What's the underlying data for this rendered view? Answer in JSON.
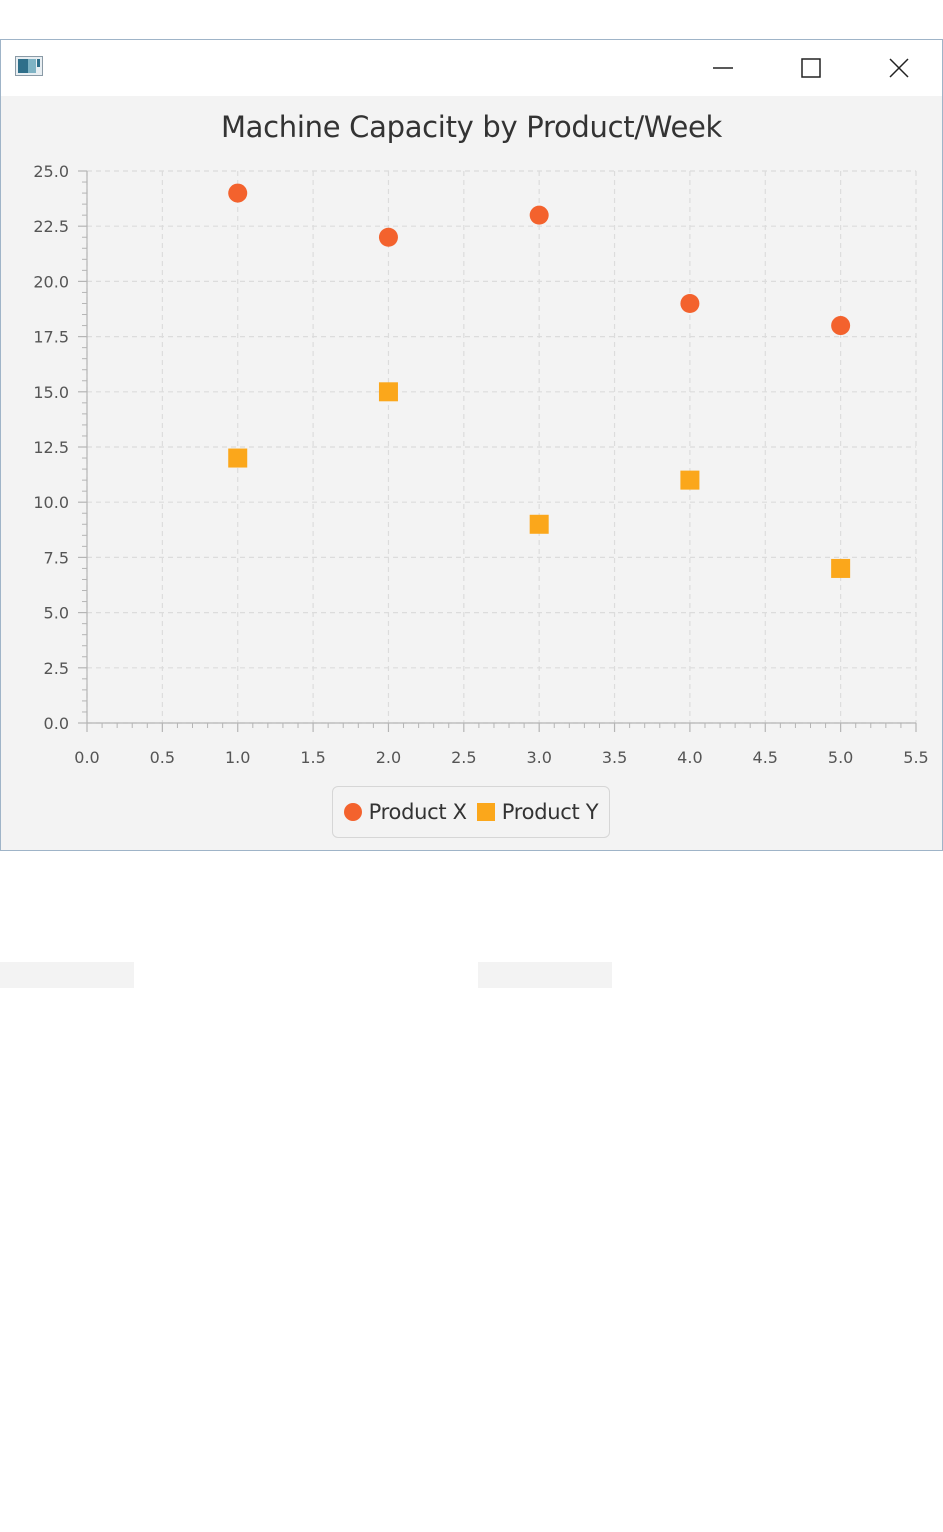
{
  "window": {
    "icon": "java-app-icon",
    "controls": [
      "minimize-icon",
      "maximize-icon",
      "close-icon"
    ]
  },
  "chart_data": {
    "type": "scatter",
    "title": "Machine Capacity by Product/Week",
    "xlabel": "",
    "ylabel": "",
    "xlim": [
      0.0,
      5.5
    ],
    "ylim": [
      0.0,
      25.0
    ],
    "x_ticks": [
      "0.0",
      "0.5",
      "1.0",
      "1.5",
      "2.0",
      "2.5",
      "3.0",
      "3.5",
      "4.0",
      "4.5",
      "5.0",
      "5.5"
    ],
    "y_ticks": [
      "0.0",
      "2.5",
      "5.0",
      "7.5",
      "10.0",
      "12.5",
      "15.0",
      "17.5",
      "20.0",
      "22.5",
      "25.0"
    ],
    "grid": true,
    "legend_position": "bottom",
    "series": [
      {
        "name": "Product X",
        "symbol": "circle",
        "color": "#f3622d",
        "points": [
          [
            1,
            24
          ],
          [
            2,
            22
          ],
          [
            3,
            23
          ],
          [
            4,
            19
          ],
          [
            5,
            18
          ]
        ]
      },
      {
        "name": "Product Y",
        "symbol": "square",
        "color": "#fba71b",
        "points": [
          [
            1,
            12
          ],
          [
            2,
            15
          ],
          [
            3,
            9
          ],
          [
            4,
            11
          ],
          [
            5,
            7
          ]
        ]
      }
    ]
  }
}
